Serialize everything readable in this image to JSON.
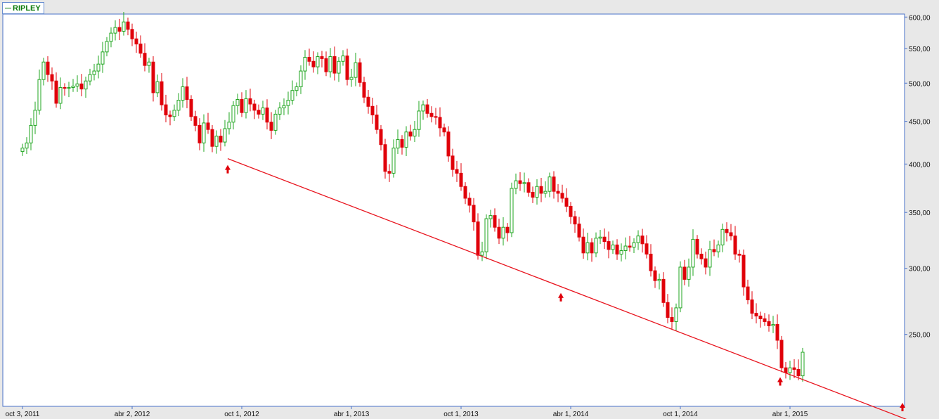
{
  "colors": {
    "background": "#e8e8e8",
    "plot_bg": "#ffffff",
    "frame": "#4a72c8",
    "up_candle": "#1fa61f",
    "down_candle": "#e0000a",
    "trendline": "#e8141e",
    "arrow": "#e0000a"
  },
  "legend": {
    "label": "RIPLEY"
  },
  "chart_data": {
    "type": "candlestick",
    "series_name": "RIPLEY",
    "y_scale": "log",
    "ylim": [
      205,
      605
    ],
    "y_ticks": [
      "600,00",
      "550,00",
      "500,00",
      "450,00",
      "400,00",
      "350,00",
      "300,00",
      "250,00"
    ],
    "x_ticks": [
      "oct 3, 2011",
      "abr 2, 2012",
      "oct 1, 2012",
      "abr 1, 2013",
      "oct 1, 2013",
      "abr 1, 2014",
      "oct 1, 2014",
      "abr 1, 2015"
    ],
    "x_tick_weeks": [
      0,
      26,
      52,
      78,
      104,
      130,
      156,
      182
    ],
    "weeks_total": 203,
    "closes": [
      418,
      424,
      445,
      464,
      505,
      530,
      512,
      503,
      473,
      494,
      493,
      494,
      496,
      499,
      492,
      503,
      512,
      517,
      527,
      545,
      561,
      574,
      583,
      577,
      592,
      580,
      565,
      557,
      543,
      525,
      530,
      487,
      502,
      471,
      458,
      456,
      464,
      477,
      495,
      478,
      456,
      445,
      424,
      448,
      440,
      420,
      432,
      425,
      441,
      449,
      470,
      478,
      461,
      479,
      472,
      464,
      459,
      467,
      449,
      439,
      459,
      467,
      470,
      477,
      490,
      495,
      517,
      537,
      531,
      523,
      538,
      535,
      516,
      538,
      514,
      531,
      539,
      505,
      508,
      529,
      501,
      481,
      469,
      458,
      440,
      422,
      392,
      390,
      418,
      428,
      419,
      437,
      432,
      440,
      463,
      471,
      460,
      456,
      455,
      442,
      437,
      409,
      394,
      390,
      376,
      364,
      357,
      341,
      311,
      314,
      344,
      347,
      336,
      326,
      336,
      331,
      374,
      382,
      379,
      380,
      370,
      365,
      376,
      369,
      371,
      386,
      371,
      369,
      364,
      356,
      346,
      339,
      327,
      313,
      322,
      313,
      326,
      327,
      323,
      316,
      320,
      312,
      315,
      319,
      318,
      322,
      328,
      321,
      312,
      298,
      290,
      291,
      273,
      262,
      259,
      269,
      301,
      291,
      301,
      325,
      312,
      308,
      301,
      316,
      314,
      320,
      334,
      331,
      328,
      312,
      311,
      285,
      275,
      265,
      263,
      261,
      259,
      256,
      257,
      246,
      228,
      225,
      228,
      227,
      223,
      238
    ],
    "opens": [
      414,
      418,
      424,
      445,
      464,
      505,
      530,
      512,
      503,
      473,
      494,
      493,
      494,
      496,
      499,
      492,
      503,
      512,
      517,
      527,
      545,
      561,
      574,
      583,
      577,
      592,
      580,
      565,
      557,
      543,
      525,
      530,
      487,
      502,
      471,
      458,
      456,
      464,
      477,
      495,
      478,
      456,
      445,
      424,
      448,
      440,
      420,
      432,
      425,
      441,
      449,
      470,
      478,
      461,
      479,
      472,
      464,
      459,
      467,
      449,
      439,
      459,
      467,
      470,
      477,
      490,
      495,
      517,
      537,
      531,
      523,
      538,
      535,
      516,
      538,
      514,
      531,
      539,
      505,
      508,
      529,
      501,
      481,
      469,
      458,
      440,
      422,
      392,
      390,
      418,
      428,
      419,
      437,
      432,
      440,
      463,
      471,
      460,
      456,
      455,
      442,
      437,
      409,
      394,
      390,
      376,
      364,
      357,
      341,
      311,
      314,
      344,
      347,
      336,
      326,
      336,
      331,
      374,
      382,
      379,
      380,
      370,
      365,
      376,
      369,
      371,
      386,
      371,
      369,
      364,
      356,
      346,
      339,
      327,
      313,
      322,
      313,
      326,
      327,
      323,
      316,
      320,
      312,
      315,
      319,
      318,
      322,
      328,
      321,
      312,
      298,
      290,
      291,
      273,
      262,
      259,
      269,
      301,
      291,
      301,
      325,
      312,
      308,
      301,
      316,
      314,
      320,
      334,
      331,
      328,
      312,
      311,
      285,
      275,
      265,
      263,
      261,
      259,
      256,
      257,
      246,
      228,
      225,
      228,
      227,
      223
    ],
    "trendline": {
      "from": {
        "week": 49,
        "price": 406
      },
      "to": {
        "week": 203,
        "price": 204
      }
    },
    "support_arrow_weeks": [
      49,
      128,
      180,
      209
    ]
  }
}
